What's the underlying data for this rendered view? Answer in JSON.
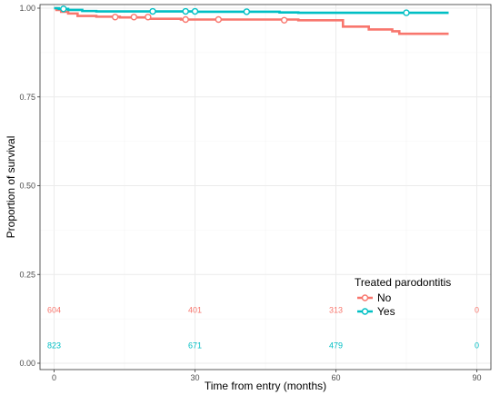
{
  "chart_data": {
    "type": "line",
    "title": "",
    "xlabel": "Time from entry (months)",
    "ylabel": "Proportion of survival",
    "xlim": [
      -3,
      93
    ],
    "ylim": [
      0,
      1
    ],
    "xticks": [
      "0",
      "30",
      "60",
      "90"
    ],
    "xtick_values": [
      0,
      30,
      60,
      90
    ],
    "yticks": [
      "0.00",
      "0.25",
      "0.50",
      "0.75",
      "1.00"
    ],
    "ytick_values": [
      0,
      0.25,
      0.5,
      0.75,
      1.0
    ],
    "grid": true,
    "legend": {
      "title": "Treated parodontitis",
      "placement": "bottom-right"
    },
    "series": [
      {
        "name": "No",
        "color": "#F8766D",
        "steps": [
          [
            0,
            1.0
          ],
          [
            0.5,
            0.995
          ],
          [
            1.5,
            0.99
          ],
          [
            3,
            0.985
          ],
          [
            5,
            0.978
          ],
          [
            9,
            0.976
          ],
          [
            14,
            0.974
          ],
          [
            20,
            0.97
          ],
          [
            27,
            0.968
          ],
          [
            52,
            0.966
          ],
          [
            61.5,
            0.948
          ],
          [
            67,
            0.94
          ],
          [
            72,
            0.936
          ],
          [
            72.8,
            0.933
          ],
          [
            73.5,
            0.936
          ],
          [
            72.5,
            0.935
          ],
          [
            74,
            0.935
          ],
          [
            72,
            0.935
          ],
          [
            72,
            0.936
          ],
          [
            72.8,
            0.934
          ],
          [
            72.5,
            0.936
          ]
        ],
        "steps_clean": [
          [
            0,
            1.0
          ],
          [
            0.5,
            0.995
          ],
          [
            1.5,
            0.99
          ],
          [
            3,
            0.985
          ],
          [
            5,
            0.978
          ],
          [
            9,
            0.976
          ],
          [
            14,
            0.974
          ],
          [
            20,
            0.97
          ],
          [
            27,
            0.968
          ],
          [
            52,
            0.966
          ],
          [
            61.5,
            0.948
          ],
          [
            67,
            0.94
          ],
          [
            72,
            0.935
          ],
          [
            73.5,
            0.928
          ],
          [
            84,
            0.928
          ]
        ],
        "censored": [
          [
            13,
            0.975
          ],
          [
            17,
            0.975
          ],
          [
            20,
            0.975
          ],
          [
            28,
            0.968
          ],
          [
            35,
            0.968
          ],
          [
            49,
            0.966
          ]
        ]
      },
      {
        "name": "Yes",
        "color": "#00BFC4",
        "steps": [
          [
            0,
            1.0
          ],
          [
            1,
            0.998
          ],
          [
            3,
            0.995
          ],
          [
            6,
            0.992
          ],
          [
            9,
            0.991
          ],
          [
            30,
            0.99
          ],
          [
            48,
            0.988
          ],
          [
            52,
            0.987
          ],
          [
            84,
            0.987
          ]
        ],
        "censored": [
          [
            2,
            0.998
          ],
          [
            21,
            0.991
          ],
          [
            28,
            0.991
          ],
          [
            30,
            0.991
          ],
          [
            41,
            0.99
          ],
          [
            75,
            0.987
          ]
        ]
      }
    ],
    "risk_table": {
      "times": [
        0,
        30,
        60,
        90
      ],
      "rows": [
        {
          "name": "No",
          "color": "#F8766D",
          "y_level": 0.15,
          "counts": [
            "604",
            "401",
            "313",
            "0"
          ]
        },
        {
          "name": "Yes",
          "color": "#00BFC4",
          "y_level": 0.05,
          "counts": [
            "823",
            "671",
            "479",
            "0"
          ]
        }
      ]
    }
  }
}
